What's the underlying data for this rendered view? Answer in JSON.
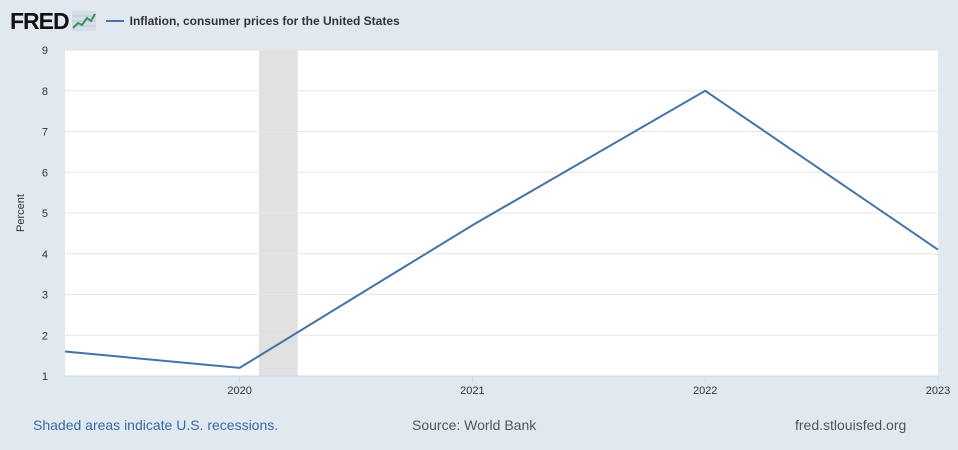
{
  "header": {
    "logo_text": "FRED",
    "logo_icon": "fred-line-chart-icon",
    "legend_label": "Inflation, consumer prices for the United States"
  },
  "chart_data": {
    "type": "line",
    "series": [
      {
        "name": "Inflation, consumer prices for the United States",
        "color": "#4572a7",
        "points": [
          {
            "x": "2019-04",
            "y": 1.6
          },
          {
            "x": "2020-01",
            "y": 1.2
          },
          {
            "x": "2021-01",
            "y": 4.7
          },
          {
            "x": "2022-01",
            "y": 8.0
          },
          {
            "x": "2023-01",
            "y": 4.1
          }
        ]
      }
    ],
    "ylabel": "Percent",
    "ylim": [
      1,
      9
    ],
    "yticks": [
      "1",
      "2",
      "3",
      "4",
      "5",
      "6",
      "7",
      "8",
      "9"
    ],
    "xlim": [
      "2019-04",
      "2023-01"
    ],
    "xticks": [
      "2020",
      "2021",
      "2022",
      "2023"
    ],
    "recession_shading": [
      {
        "start": "2020-02",
        "end": "2020-04"
      }
    ],
    "grid": true,
    "colors": {
      "background": "#e1e9f0",
      "plot": "#ffffff",
      "gridline": "#e6e6e6",
      "recession": "#e1e1e1",
      "line": "#4572a7"
    }
  },
  "footer": {
    "recession_note": "Shaded areas indicate U.S. recessions.",
    "source": "Source: World Bank",
    "site": "fred.stlouisfed.org"
  }
}
